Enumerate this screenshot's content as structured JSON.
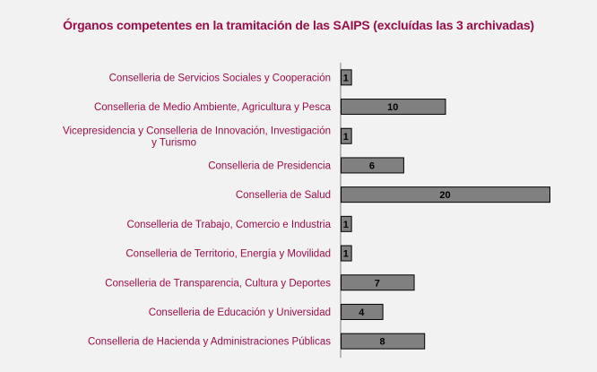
{
  "chart_data": {
    "type": "bar",
    "orientation": "horizontal",
    "title": "Órganos competentes en la tramitación de las SAIPS (excluídas las 3 archivadas)",
    "xlabel": "",
    "ylabel": "",
    "grid": false,
    "xlim": [
      0,
      20
    ],
    "categories": [
      "Conselleria de Servicios Sociales y Cooperación",
      "Conselleria de Medio Ambiente, Agricultura y Pesca",
      "Vicepresidencia y Conselleria de Innovación, Investigación y Turismo",
      "Conselleria de Presidencia",
      "Conselleria de Salud",
      "Conselleria de Trabajo, Comercio e Industria",
      "Conselleria de Territorio, Energía y Movilidad",
      "Conselleria de Transparencia, Cultura y Deportes",
      "Conselleria de Educación y Universidad",
      "Conselleria de Hacienda y Administraciones Públicas"
    ],
    "values": [
      1,
      10,
      1,
      6,
      20,
      1,
      1,
      7,
      4,
      8
    ],
    "colors": {
      "bar": "#808080",
      "label": "#9b0d4a",
      "background": "#f2f2f2"
    }
  }
}
